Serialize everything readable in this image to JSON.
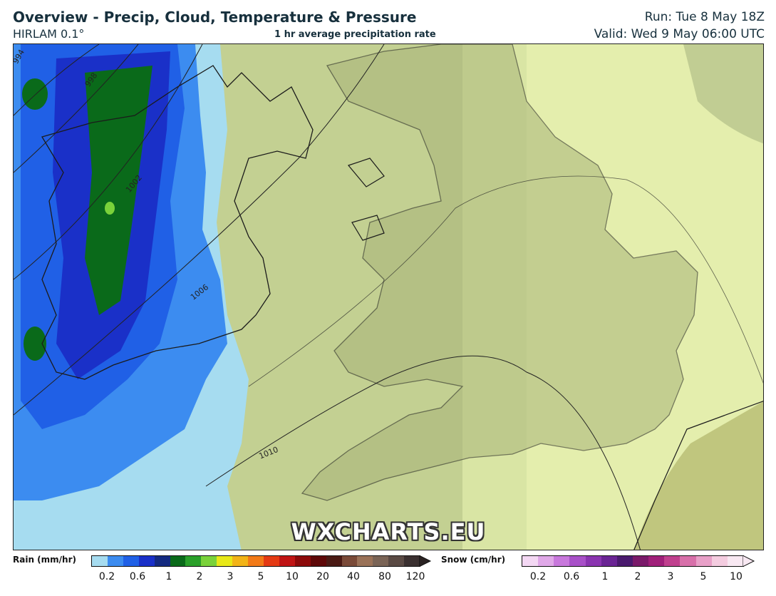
{
  "header": {
    "title": "Overview - Precip, Cloud, Temperature & Pressure",
    "model": "HIRLAM 0.1°",
    "subtitle": "1 hr average precipitation rate",
    "run": "Run: Tue 8 May 18Z",
    "valid": "Valid: Wed 9 May 06:00 UTC"
  },
  "map": {
    "watermark": "WXCHARTS.EU",
    "isobar_labels": [
      "994",
      "998",
      "1002",
      "1006",
      "1010"
    ]
  },
  "legend": {
    "rain": {
      "title": "Rain (mm/hr)",
      "ticks": [
        "0.2",
        "0.6",
        "1",
        "2",
        "3",
        "5",
        "10",
        "20",
        "40",
        "80",
        "120"
      ],
      "colors": [
        "#a6dcf0",
        "#3c8cf0",
        "#2060e6",
        "#1a30c8",
        "#142a80",
        "#0a6a1a",
        "#2aa02a",
        "#7ad23a",
        "#e8e818",
        "#f2b418",
        "#f27a18",
        "#e43a14",
        "#c01414",
        "#8c0a0a",
        "#5e0808",
        "#4a1a14",
        "#7a4a38",
        "#9a7258",
        "#7a6456",
        "#5a4a44",
        "#3a3030"
      ]
    },
    "snow": {
      "title": "Snow (cm/hr)",
      "ticks": [
        "0.2",
        "0.6",
        "1",
        "2",
        "3",
        "5",
        "10"
      ],
      "colors": [
        "#f4d8f4",
        "#e0a8e8",
        "#c878dc",
        "#a850c8",
        "#8a34b0",
        "#6a2494",
        "#4a1a6e",
        "#7a1a6a",
        "#a0207a",
        "#c0408e",
        "#d870aa",
        "#e8a0c8",
        "#f4cce0",
        "#f8e8f2"
      ]
    }
  }
}
